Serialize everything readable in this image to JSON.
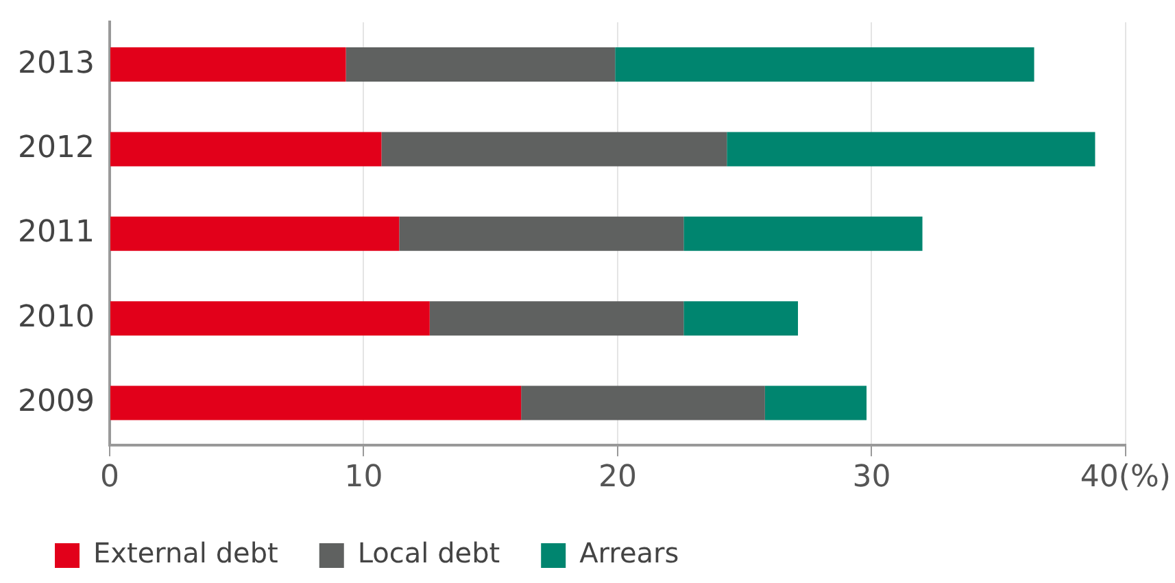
{
  "chart_data": {
    "type": "bar",
    "orientation": "horizontal",
    "stacked": true,
    "categories": [
      "2013",
      "2012",
      "2011",
      "2010",
      "2009"
    ],
    "series": [
      {
        "name": "External debt",
        "color": "#e2001a",
        "values": [
          9.3,
          10.7,
          11.4,
          12.6,
          16.2
        ]
      },
      {
        "name": "Local debt",
        "color": "#5f6160",
        "values": [
          10.6,
          13.6,
          11.2,
          10.0,
          9.6
        ]
      },
      {
        "name": "Arrears",
        "color": "#00856f",
        "values": [
          16.5,
          14.5,
          9.4,
          4.5,
          4.0
        ]
      }
    ],
    "xlim": [
      0,
      40
    ],
    "xticks": [
      0,
      10,
      20,
      30,
      {
        "value": 40,
        "label": "40(%)"
      }
    ],
    "grid": "x",
    "legend": "bottom"
  }
}
